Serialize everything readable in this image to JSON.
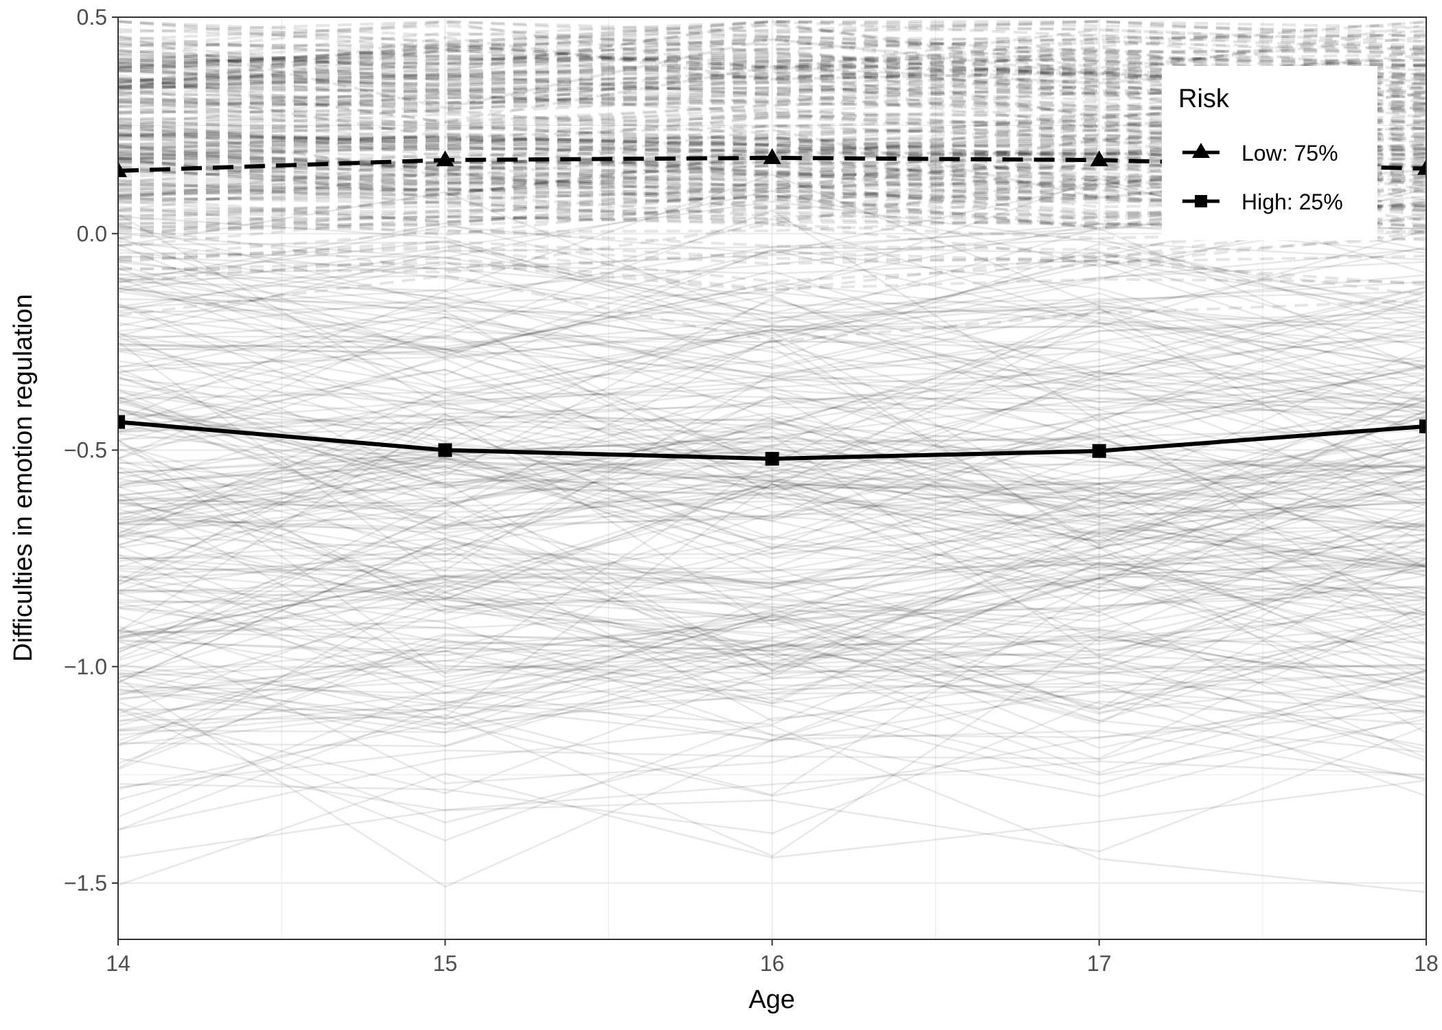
{
  "chart_data": {
    "type": "line",
    "xlabel": "Age",
    "ylabel": "Difficulties in emotion regulation",
    "xlim": [
      14,
      18
    ],
    "ylim": [
      -1.63,
      0.5
    ],
    "x_ticks": [
      "14",
      "15",
      "16",
      "17",
      "18"
    ],
    "y_ticks": [
      "0.5",
      "0.0",
      "-0.5",
      "-1.0",
      "-1.5"
    ],
    "grid": true,
    "legend": {
      "title": "Risk",
      "position": "top-right"
    },
    "series": [
      {
        "name": "Low: 75%",
        "line_style": "dashed",
        "marker": "triangle",
        "color": "#000000",
        "x": [
          14,
          15,
          16,
          17,
          18
        ],
        "values": [
          0.145,
          0.17,
          0.175,
          0.17,
          0.15
        ]
      },
      {
        "name": "High: 25%",
        "line_style": "solid",
        "marker": "square",
        "color": "#000000",
        "x": [
          14,
          15,
          16,
          17,
          18
        ],
        "values": [
          -0.435,
          -0.5,
          -0.52,
          -0.502,
          -0.445
        ]
      }
    ],
    "background_trajectories": "individual trajectories shown in translucent gray"
  }
}
